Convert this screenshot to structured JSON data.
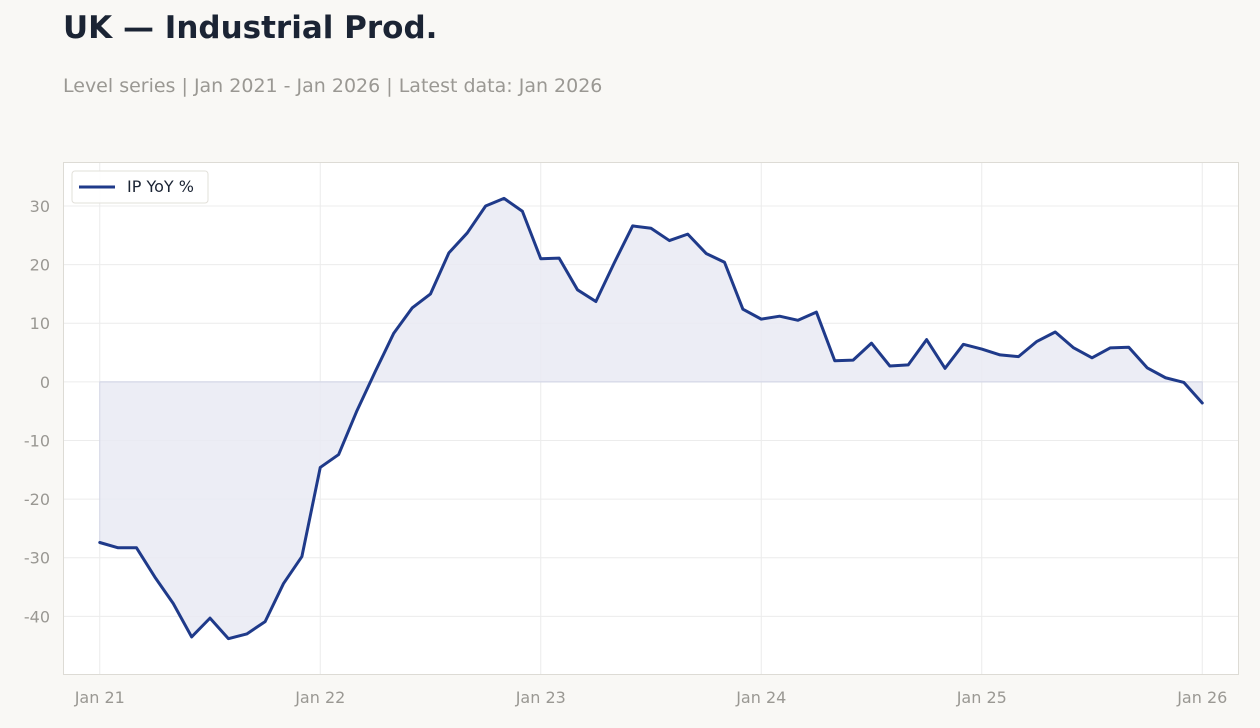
{
  "title": "UK — Industrial Prod.",
  "subtitle": "Level series | Jan 2021 - Jan 2026 | Latest data: Jan 2026",
  "colors": {
    "line": "#1f3a8a",
    "fill": "#e9eaf3",
    "grid": "#ececec",
    "frame": "#dddbd5",
    "background": "#f9f8f5",
    "plot_background": "#ffffff"
  },
  "chart_data": {
    "type": "line",
    "title": "UK — Industrial Prod.",
    "subtitle": "Level series | Jan 2021 - Jan 2026 | Latest data: Jan 2026",
    "xlabel": "",
    "ylabel": "",
    "x_ticks": [
      "Jan 21",
      "Jan 22",
      "Jan 23",
      "Jan 24",
      "Jan 25",
      "Jan 26"
    ],
    "y_ticks": [
      30,
      20,
      10,
      0,
      -10,
      -20,
      -30,
      -40
    ],
    "ylim": [
      -50,
      37.5
    ],
    "xlim": [
      "2020-11",
      "2026-03"
    ],
    "grid": true,
    "area_fill_to_zero": true,
    "legend_position": "top-left",
    "series": [
      {
        "name": "IP YoY %",
        "x": [
          "2021-01",
          "2021-02",
          "2021-03",
          "2021-04",
          "2021-05",
          "2021-06",
          "2021-07",
          "2021-08",
          "2021-09",
          "2021-10",
          "2021-11",
          "2021-12",
          "2022-01",
          "2022-02",
          "2022-03",
          "2022-04",
          "2022-05",
          "2022-06",
          "2022-07",
          "2022-08",
          "2022-09",
          "2022-10",
          "2022-11",
          "2022-12",
          "2023-01",
          "2023-02",
          "2023-03",
          "2023-04",
          "2023-05",
          "2023-06",
          "2023-07",
          "2023-08",
          "2023-09",
          "2023-10",
          "2023-11",
          "2023-12",
          "2024-01",
          "2024-02",
          "2024-03",
          "2024-04",
          "2024-05",
          "2024-06",
          "2024-07",
          "2024-08",
          "2024-09",
          "2024-10",
          "2024-11",
          "2024-12",
          "2025-01",
          "2025-02",
          "2025-03",
          "2025-04",
          "2025-05",
          "2025-06",
          "2025-07",
          "2025-08",
          "2025-09",
          "2025-10",
          "2025-11",
          "2025-12",
          "2026-01"
        ],
        "values": [
          -27.4,
          -28.3,
          -28.3,
          -33.3,
          -37.8,
          -43.5,
          -40.3,
          -43.8,
          -43.0,
          -40.9,
          -34.4,
          -29.8,
          -14.6,
          -12.4,
          -4.9,
          1.8,
          8.3,
          12.6,
          15.0,
          22.0,
          25.4,
          30.0,
          31.3,
          29.1,
          21.0,
          21.1,
          15.7,
          13.7,
          20.3,
          26.6,
          26.2,
          24.1,
          25.2,
          21.9,
          20.4,
          12.4,
          10.7,
          11.2,
          10.5,
          11.9,
          3.6,
          3.7,
          6.6,
          2.7,
          2.9,
          7.2,
          2.3,
          6.4,
          5.6,
          4.6,
          4.3,
          6.9,
          8.5,
          5.8,
          4.1,
          5.8,
          5.9,
          2.4,
          0.7,
          -0.1,
          -3.6
        ]
      }
    ]
  }
}
